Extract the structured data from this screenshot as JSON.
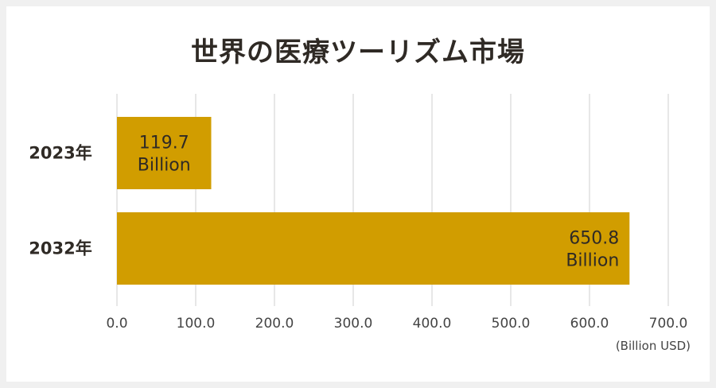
{
  "title": "世界の医療ツーリズム市場",
  "unit_label": "(Billion USD)",
  "colors": {
    "bar": "#d19d00",
    "grid": "#cfcfcf",
    "text": "#2f2a25",
    "axis_text": "#444444",
    "background": "#ffffff"
  },
  "chart_data": {
    "type": "bar",
    "orientation": "horizontal",
    "categories": [
      "2023年",
      "2032年"
    ],
    "values": [
      119.7,
      650.8
    ],
    "data_labels": [
      {
        "value": "119.7",
        "unit": "Billion"
      },
      {
        "value": "650.8",
        "unit": "Billion"
      }
    ],
    "title": "世界の医療ツーリズム市場",
    "xlabel": "(Billion USD)",
    "ylabel": "",
    "xlim": [
      0,
      700
    ],
    "x_ticks": [
      "0.0",
      "100.0",
      "200.0",
      "300.0",
      "400.0",
      "500.0",
      "600.0",
      "700.0"
    ],
    "grid": true,
    "legend": "none"
  }
}
